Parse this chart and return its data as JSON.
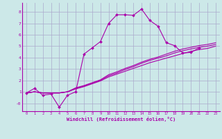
{
  "background_color": "#cce8e8",
  "grid_color": "#aaaacc",
  "line_color": "#aa00aa",
  "marker_color": "#aa00aa",
  "xlabel": "Windchill (Refroidissement éolien,°C)",
  "xlim": [
    -0.5,
    23.5
  ],
  "ylim": [
    -0.7,
    8.8
  ],
  "yticks": [
    0,
    1,
    2,
    3,
    4,
    5,
    6,
    7,
    8
  ],
  "ytick_labels": [
    "-0",
    "1",
    "2",
    "3",
    "4",
    "5",
    "6",
    "7",
    "8"
  ],
  "xticks": [
    0,
    1,
    2,
    3,
    4,
    5,
    6,
    7,
    8,
    9,
    10,
    11,
    12,
    13,
    14,
    15,
    16,
    17,
    18,
    19,
    20,
    21,
    22,
    23
  ],
  "line1_x": [
    0,
    1,
    2,
    3,
    4,
    5,
    6,
    7,
    8,
    9,
    10,
    11,
    12,
    13,
    14,
    15,
    16,
    17,
    18,
    19,
    20,
    21,
    22,
    23
  ],
  "line1_y": [
    0.9,
    1.3,
    0.7,
    0.8,
    -0.35,
    0.7,
    1.0,
    4.3,
    4.85,
    5.4,
    7.0,
    7.75,
    7.75,
    7.7,
    8.25,
    7.25,
    6.75,
    5.3,
    5.05,
    4.4,
    4.45,
    4.85,
    -999,
    -999
  ],
  "line2_x": [
    0,
    1,
    2,
    3,
    4,
    5,
    6,
    7,
    8,
    9,
    10,
    11,
    12,
    13,
    14,
    15,
    16,
    17,
    18,
    19,
    20,
    21,
    22,
    23
  ],
  "line2_y": [
    0.9,
    1.0,
    0.9,
    0.9,
    0.9,
    1.0,
    1.25,
    1.45,
    1.7,
    1.95,
    2.3,
    2.55,
    2.8,
    3.05,
    3.3,
    3.55,
    3.75,
    3.95,
    4.15,
    4.35,
    4.55,
    4.7,
    4.8,
    5.0
  ],
  "line3_x": [
    0,
    1,
    2,
    3,
    4,
    5,
    6,
    7,
    8,
    9,
    10,
    11,
    12,
    13,
    14,
    15,
    16,
    17,
    18,
    19,
    20,
    21,
    22,
    23
  ],
  "line3_y": [
    0.9,
    1.0,
    0.9,
    0.9,
    0.9,
    1.0,
    1.3,
    1.5,
    1.75,
    2.0,
    2.4,
    2.65,
    2.95,
    3.2,
    3.5,
    3.75,
    3.95,
    4.15,
    4.4,
    4.6,
    4.75,
    4.9,
    5.0,
    5.15
  ],
  "line4_x": [
    0,
    1,
    2,
    3,
    4,
    5,
    6,
    7,
    8,
    9,
    10,
    11,
    12,
    13,
    14,
    15,
    16,
    17,
    18,
    19,
    20,
    21,
    22,
    23
  ],
  "line4_y": [
    0.9,
    1.0,
    0.9,
    0.9,
    0.9,
    1.0,
    1.35,
    1.55,
    1.8,
    2.05,
    2.5,
    2.75,
    3.05,
    3.3,
    3.6,
    3.85,
    4.05,
    4.3,
    4.55,
    4.75,
    4.9,
    5.05,
    5.15,
    5.3
  ]
}
